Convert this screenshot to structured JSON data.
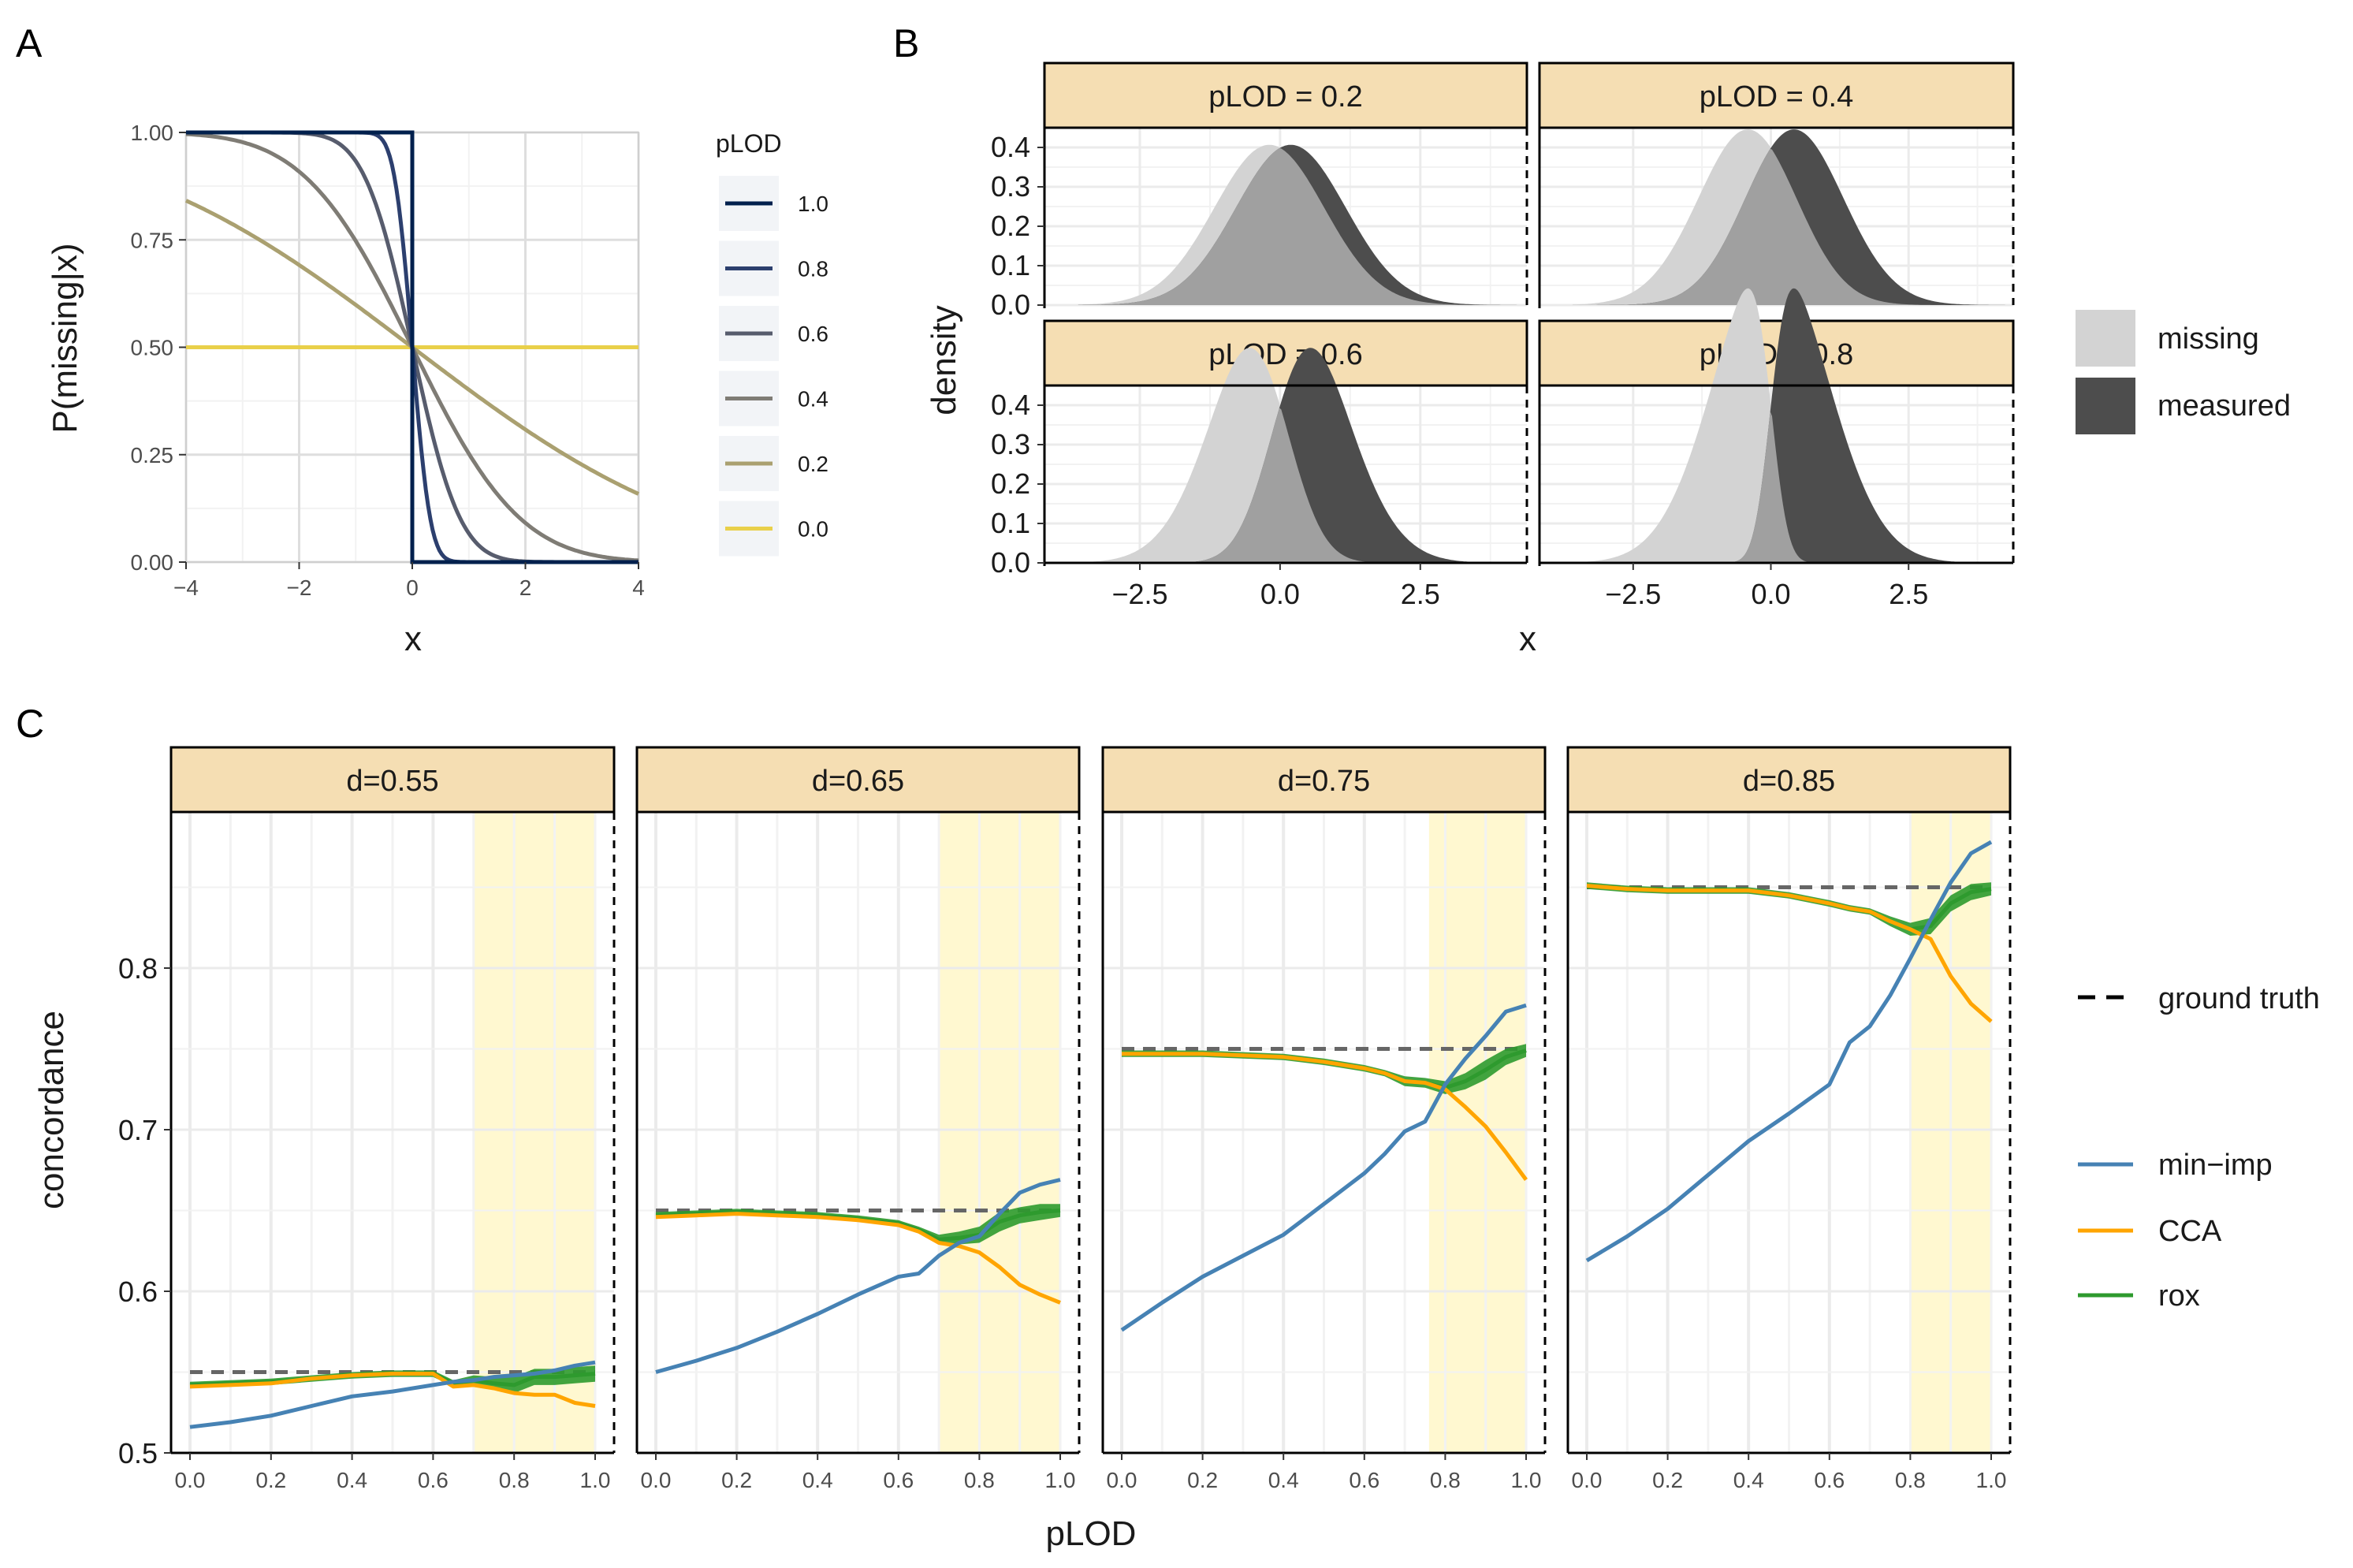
{
  "colors": {
    "panel_bg": "#ffffff",
    "grid": "#ebebeb",
    "grid_minor": "#f2f2f2",
    "strip_fill": "#f5deb3",
    "highlight": "#fff8d0",
    "missing": "#d3d3d3",
    "measured": "#4d4d4d",
    "overlap": "#a0a0a0",
    "min_imp": "#4682b4",
    "cca": "#ffa500",
    "rox": "#2e9a2e",
    "ground_truth": "#666666",
    "text": "#1a1a1a",
    "tick_text": "#4d4d4d",
    "plod_colors": [
      "#00204d",
      "#2c3f6e",
      "#575c6d",
      "#7f7c75",
      "#aaa070",
      "#e9d04a"
    ]
  },
  "chart_data": [
    {
      "panel": "A",
      "type": "line",
      "xlabel": "x",
      "ylabel": "P(missing|x)",
      "xlim": [
        -4,
        4
      ],
      "ylim": [
        0,
        1
      ],
      "xticks": [
        -4,
        -2,
        0,
        2,
        4
      ],
      "xtick_labels": [
        "−4",
        "−2",
        "0",
        "2",
        "4"
      ],
      "yticks": [
        0,
        0.25,
        0.5,
        0.75,
        1
      ],
      "ytick_labels": [
        "0.00",
        "0.25",
        "0.50",
        "0.75",
        "1.00"
      ],
      "legend_title": "pLOD",
      "legend_position": "right",
      "series": [
        {
          "name": "1.0",
          "plod": 1.0
        },
        {
          "name": "0.8",
          "plod": 0.8
        },
        {
          "name": "0.6",
          "plod": 0.6
        },
        {
          "name": "0.4",
          "plod": 0.4
        },
        {
          "name": "0.2",
          "plod": 0.2
        },
        {
          "name": "0.0",
          "plod": 0.0
        }
      ],
      "function": "P(missing|x) = 1 - Phi(k*x) with k = plod/(1-plod)"
    },
    {
      "panel": "B",
      "type": "area",
      "xlabel": "x",
      "ylabel": "density",
      "xlim": [
        -4.2,
        4.4
      ],
      "ylim": [
        0,
        0.45
      ],
      "xticks": [
        -2.5,
        0,
        2.5
      ],
      "xtick_labels": [
        "−2.5",
        "0.0",
        "2.5"
      ],
      "yticks": [
        0,
        0.1,
        0.2,
        0.3,
        0.4
      ],
      "ytick_labels": [
        "0.0",
        "0.1",
        "0.2",
        "0.3",
        "0.4"
      ],
      "facets": [
        "pLOD = 0.2",
        "pLOD = 0.4",
        "pLOD = 0.6",
        "pLOD = 0.8"
      ],
      "facet_plod": [
        0.2,
        0.4,
        0.6,
        0.8
      ],
      "legend": [
        "missing",
        "measured"
      ],
      "legend_position": "right"
    },
    {
      "panel": "C",
      "type": "line",
      "xlabel": "pLOD",
      "ylabel": "concordance",
      "xlim": [
        0,
        1
      ],
      "ylim": [
        0.5,
        0.9
      ],
      "xticks": [
        0,
        0.2,
        0.4,
        0.6,
        0.8,
        1.0
      ],
      "xtick_labels": [
        "0.0",
        "0.2",
        "0.4",
        "0.6",
        "0.8",
        "1.0"
      ],
      "yticks": [
        0.5,
        0.6,
        0.7,
        0.8
      ],
      "ytick_labels": [
        "0.5",
        "0.6",
        "0.7",
        "0.8"
      ],
      "legend": [
        "ground truth",
        "min−imp",
        "CCA",
        "rox"
      ],
      "legend_position": "right",
      "x": [
        0,
        0.1,
        0.2,
        0.3,
        0.4,
        0.5,
        0.6,
        0.65,
        0.7,
        0.75,
        0.8,
        0.85,
        0.9,
        0.95,
        1.0
      ],
      "facets": [
        {
          "label": "d=0.55",
          "truth": 0.55,
          "highlight": [
            0.7,
            1.0
          ],
          "min_imp": [
            0.516,
            0.519,
            0.523,
            0.529,
            0.535,
            0.538,
            0.542,
            0.544,
            0.545,
            0.547,
            0.548,
            0.549,
            0.551,
            0.554,
            0.556
          ],
          "cca": [
            0.541,
            0.542,
            0.543,
            0.546,
            0.548,
            0.549,
            0.549,
            0.541,
            0.542,
            0.54,
            0.537,
            0.536,
            0.536,
            0.531,
            0.529
          ],
          "rox": [
            0.542,
            0.543,
            0.544,
            0.546,
            0.548,
            0.549,
            0.549,
            0.543,
            0.545,
            0.543,
            0.542,
            0.547,
            0.547,
            0.548,
            0.549
          ],
          "rox_band": [
            0.002,
            0.002,
            0.002,
            0.002,
            0.002,
            0.002,
            0.002,
            0.002,
            0.003,
            0.004,
            0.005,
            0.005,
            0.005,
            0.005,
            0.005
          ]
        },
        {
          "label": "d=0.65",
          "truth": 0.65,
          "highlight": [
            0.7,
            1.0
          ],
          "min_imp": [
            0.55,
            0.557,
            0.565,
            0.575,
            0.586,
            0.598,
            0.609,
            0.611,
            0.622,
            0.63,
            0.634,
            0.648,
            0.661,
            0.666,
            0.669
          ],
          "cca": [
            0.646,
            0.647,
            0.648,
            0.647,
            0.646,
            0.644,
            0.641,
            0.637,
            0.63,
            0.628,
            0.624,
            0.615,
            0.604,
            0.598,
            0.593
          ],
          "rox": [
            0.647,
            0.648,
            0.649,
            0.648,
            0.647,
            0.645,
            0.642,
            0.638,
            0.632,
            0.633,
            0.635,
            0.643,
            0.647,
            0.649,
            0.65
          ],
          "rox_band": [
            0.002,
            0.002,
            0.002,
            0.002,
            0.002,
            0.002,
            0.002,
            0.002,
            0.003,
            0.004,
            0.005,
            0.006,
            0.005,
            0.005,
            0.004
          ]
        },
        {
          "label": "d=0.75",
          "truth": 0.75,
          "highlight": [
            0.76,
            1.0
          ],
          "min_imp": [
            0.576,
            0.593,
            0.609,
            0.622,
            0.635,
            0.654,
            0.673,
            0.685,
            0.699,
            0.705,
            0.728,
            0.744,
            0.758,
            0.773,
            0.777
          ],
          "cca": [
            0.747,
            0.747,
            0.747,
            0.746,
            0.745,
            0.742,
            0.738,
            0.735,
            0.73,
            0.729,
            0.725,
            0.714,
            0.702,
            0.686,
            0.669
          ],
          "rox": [
            0.747,
            0.747,
            0.747,
            0.746,
            0.745,
            0.742,
            0.738,
            0.735,
            0.73,
            0.729,
            0.726,
            0.73,
            0.737,
            0.745,
            0.749
          ],
          "rox_band": [
            0.002,
            0.002,
            0.002,
            0.002,
            0.002,
            0.002,
            0.002,
            0.002,
            0.003,
            0.003,
            0.004,
            0.005,
            0.006,
            0.005,
            0.004
          ]
        },
        {
          "label": "d=0.85",
          "truth": 0.85,
          "highlight": [
            0.8,
            1.0
          ],
          "min_imp": [
            0.619,
            0.634,
            0.651,
            0.672,
            0.693,
            0.71,
            0.728,
            0.754,
            0.764,
            0.783,
            0.806,
            0.83,
            0.853,
            0.871,
            0.878
          ],
          "cca": [
            0.851,
            0.849,
            0.848,
            0.848,
            0.848,
            0.845,
            0.84,
            0.837,
            0.835,
            0.829,
            0.824,
            0.818,
            0.795,
            0.778,
            0.767
          ],
          "rox": [
            0.851,
            0.849,
            0.848,
            0.848,
            0.848,
            0.845,
            0.84,
            0.837,
            0.835,
            0.829,
            0.824,
            0.826,
            0.84,
            0.847,
            0.849
          ],
          "rox_band": [
            0.002,
            0.002,
            0.002,
            0.002,
            0.002,
            0.002,
            0.002,
            0.002,
            0.002,
            0.003,
            0.004,
            0.005,
            0.005,
            0.005,
            0.004
          ]
        }
      ]
    }
  ],
  "panel_labels": {
    "a": "A",
    "b": "B",
    "c": "C"
  }
}
